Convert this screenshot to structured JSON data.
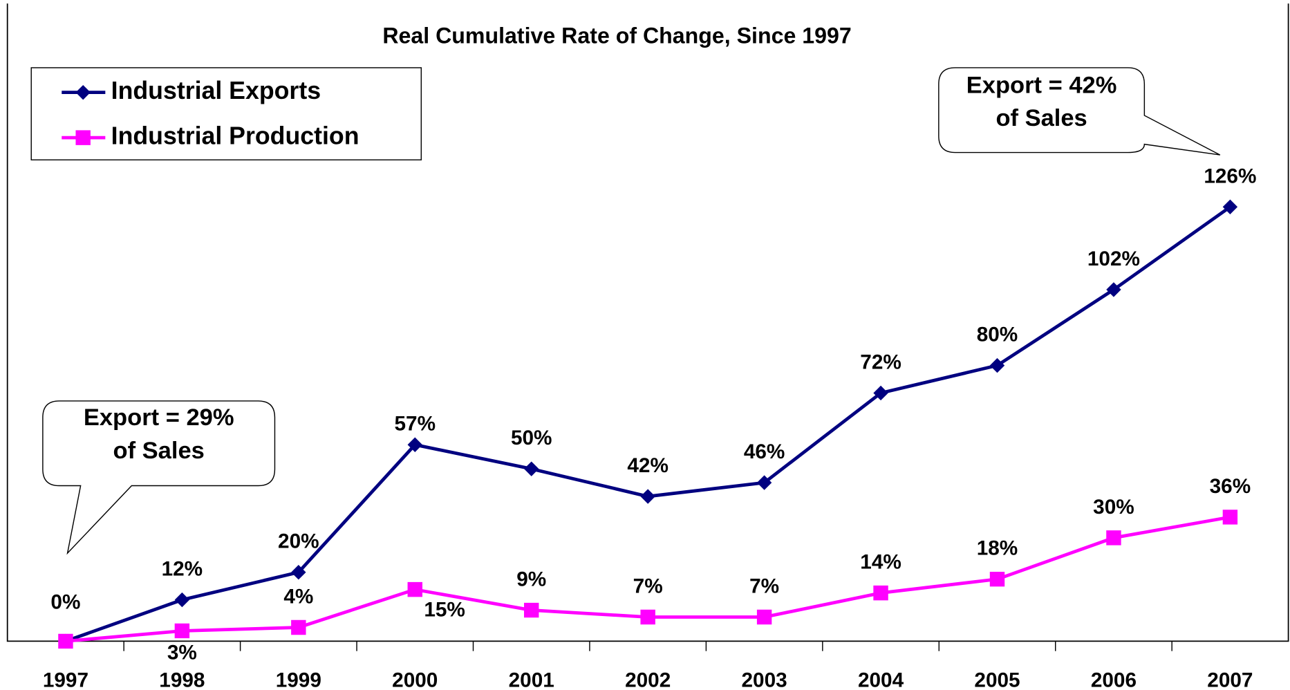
{
  "chart_data": {
    "type": "line",
    "title": "Real Cumulative Rate of Change, Since 1997",
    "categories": [
      "1997",
      "1998",
      "1999",
      "2000",
      "2001",
      "2002",
      "2003",
      "2004",
      "2005",
      "2006",
      "2007"
    ],
    "series": [
      {
        "name": "Industrial Exports",
        "color": "#000080",
        "marker": "diamond",
        "values": [
          0,
          12,
          20,
          57,
          50,
          42,
          46,
          72,
          80,
          102,
          126
        ],
        "value_labels": [
          "0%",
          "12%",
          "20%",
          "57%",
          "50%",
          "42%",
          "46%",
          "72%",
          "80%",
          "102%",
          "126%"
        ]
      },
      {
        "name": "Industrial Production",
        "color": "#ff00ff",
        "marker": "square",
        "values": [
          0,
          3,
          4,
          15,
          9,
          7,
          7,
          14,
          18,
          30,
          36
        ],
        "value_labels": [
          null,
          "3%",
          "4%",
          "15%",
          "9%",
          "7%",
          "7%",
          "14%",
          "18%",
          "30%",
          "36%"
        ]
      }
    ],
    "ylim": [
      0,
      185
    ],
    "legend": "upper left",
    "annotations": [
      {
        "lines": [
          "Export = 29%",
          "of Sales"
        ]
      },
      {
        "lines": [
          "Export = 42%",
          "of Sales"
        ]
      }
    ]
  }
}
